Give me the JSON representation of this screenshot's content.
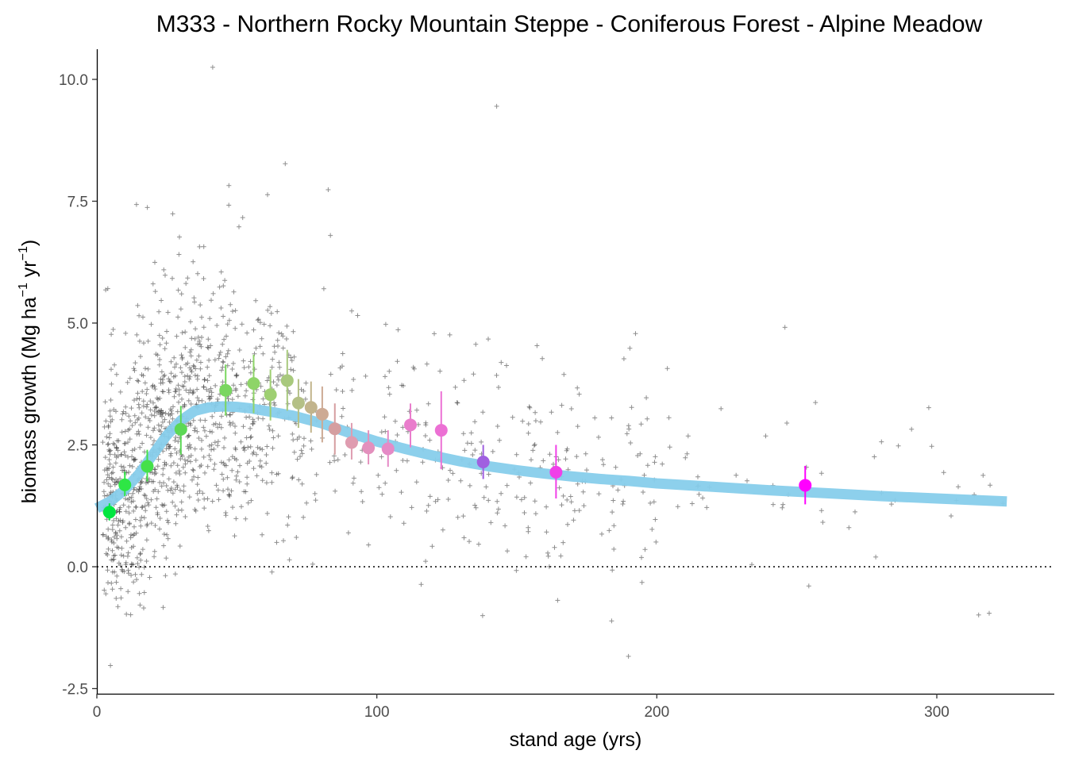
{
  "chart_data": {
    "type": "scatter",
    "title": "M333 - Northern Rocky Mountain Steppe - Coniferous Forest - Alpine Meadow",
    "xlabel": "stand age (yrs)",
    "ylabel": {
      "prefix": "biomass growth (Mg ha",
      "sup1": "−1",
      "middle": " yr",
      "sup2": "−1",
      "suffix": ")"
    },
    "xlim": [
      0,
      342
    ],
    "ylim": [
      -2.55,
      10.6
    ],
    "x_ticks": [
      0,
      100,
      200,
      300
    ],
    "y_ticks": [
      -2.5,
      0.0,
      2.5,
      5.0,
      7.5,
      10.0
    ],
    "y_tick_labels": [
      "-2.5",
      "0.0",
      "2.5",
      "5.0",
      "7.5",
      "10.0"
    ],
    "grid": false,
    "reference_line": {
      "y": 0,
      "style": "dotted"
    },
    "colors": {
      "raw_points": "#333333",
      "fit_line": "#87ceeb",
      "young": "#00e640",
      "old": "#ff00ff"
    },
    "raw_points_note": "approx. 1400 individual plot observations drawn as small grey plus markers, concentrated between 0 and 150 years",
    "fit_curve": {
      "x": [
        0,
        5,
        10,
        15,
        20,
        25,
        30,
        35,
        40,
        45,
        50,
        55,
        60,
        70,
        80,
        90,
        100,
        110,
        120,
        130,
        140,
        150,
        160,
        170,
        180,
        190,
        200,
        220,
        240,
        260,
        280,
        300,
        325
      ],
      "y": [
        1.2,
        1.35,
        1.58,
        1.9,
        2.3,
        2.7,
        3.0,
        3.2,
        3.27,
        3.29,
        3.28,
        3.25,
        3.2,
        3.1,
        2.95,
        2.75,
        2.57,
        2.42,
        2.28,
        2.16,
        2.06,
        1.98,
        1.91,
        1.85,
        1.8,
        1.76,
        1.71,
        1.64,
        1.57,
        1.51,
        1.45,
        1.4,
        1.34
      ]
    },
    "binned_means": [
      {
        "x": 4.5,
        "y": 1.12,
        "lo": 0.95,
        "hi": 1.3,
        "color": "#00e640"
      },
      {
        "x": 10,
        "y": 1.68,
        "lo": 1.45,
        "hi": 1.95,
        "color": "#2ee645"
      },
      {
        "x": 18,
        "y": 2.06,
        "lo": 1.75,
        "hi": 2.4,
        "color": "#45e04a"
      },
      {
        "x": 30,
        "y": 2.82,
        "lo": 2.3,
        "hi": 3.3,
        "color": "#5cd855"
      },
      {
        "x": 46,
        "y": 3.62,
        "lo": 3.1,
        "hi": 4.15,
        "color": "#7ad660"
      },
      {
        "x": 56,
        "y": 3.76,
        "lo": 3.15,
        "hi": 4.35,
        "color": "#8ed468"
      },
      {
        "x": 62,
        "y": 3.53,
        "lo": 3.0,
        "hi": 4.05,
        "color": "#9ecf72"
      },
      {
        "x": 68,
        "y": 3.82,
        "lo": 3.2,
        "hi": 4.45,
        "color": "#a8c97d"
      },
      {
        "x": 72,
        "y": 3.36,
        "lo": 2.85,
        "hi": 3.85,
        "color": "#b4c086"
      },
      {
        "x": 76.5,
        "y": 3.27,
        "lo": 2.75,
        "hi": 3.8,
        "color": "#c2b48c"
      },
      {
        "x": 80.5,
        "y": 3.13,
        "lo": 2.55,
        "hi": 3.7,
        "color": "#cdaa94"
      },
      {
        "x": 85,
        "y": 2.83,
        "lo": 2.3,
        "hi": 3.35,
        "color": "#d59ea0"
      },
      {
        "x": 91,
        "y": 2.55,
        "lo": 2.2,
        "hi": 2.95,
        "color": "#df9cb0"
      },
      {
        "x": 97,
        "y": 2.44,
        "lo": 2.1,
        "hi": 2.8,
        "color": "#e390bd"
      },
      {
        "x": 104,
        "y": 2.42,
        "lo": 2.05,
        "hi": 2.8,
        "color": "#e58ac6"
      },
      {
        "x": 112,
        "y": 2.91,
        "lo": 2.45,
        "hi": 3.35,
        "color": "#e97dcc"
      },
      {
        "x": 123,
        "y": 2.8,
        "lo": 2.0,
        "hi": 3.6,
        "color": "#ec70d4"
      },
      {
        "x": 138,
        "y": 2.15,
        "lo": 1.8,
        "hi": 2.5,
        "color": "#a060e0"
      },
      {
        "x": 164,
        "y": 1.94,
        "lo": 1.4,
        "hi": 2.5,
        "color": "#f040e8"
      },
      {
        "x": 253,
        "y": 1.67,
        "lo": 1.28,
        "hi": 2.07,
        "color": "#ff00ff"
      }
    ]
  }
}
